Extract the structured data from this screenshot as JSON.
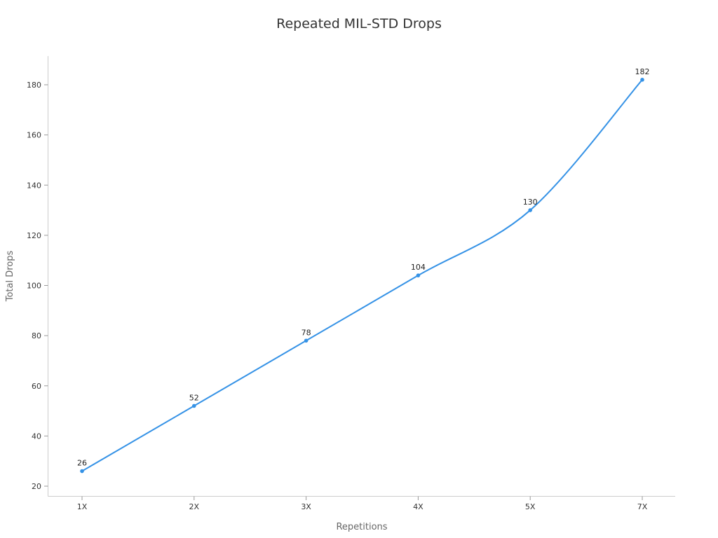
{
  "chart_data": {
    "type": "line",
    "title": "Repeated MIL-STD Drops",
    "xlabel": "Repetitions",
    "ylabel": "Total Drops",
    "categories": [
      "1X",
      "2X",
      "3X",
      "4X",
      "5X",
      "7X"
    ],
    "series": [
      {
        "name": "Total Drops",
        "values": [
          26,
          52,
          78,
          104,
          130,
          182
        ],
        "color": "#3592e6"
      }
    ],
    "y_ticks": [
      20,
      40,
      60,
      80,
      100,
      120,
      140,
      160,
      180
    ],
    "ylim": [
      16.5,
      191.5
    ],
    "grid": false,
    "legend": "none",
    "data_labels": true
  }
}
